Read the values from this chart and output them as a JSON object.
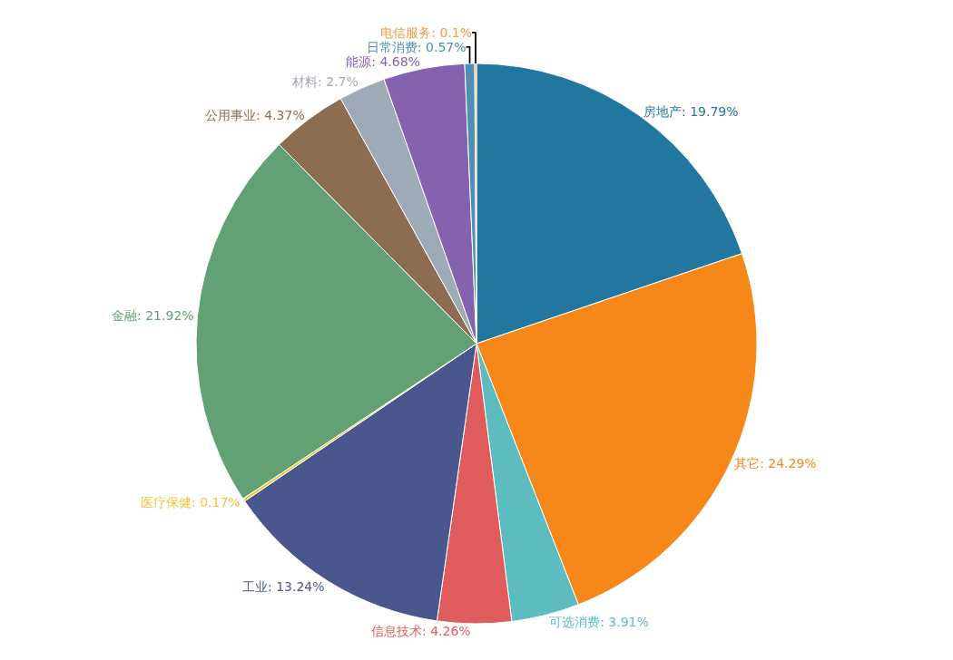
{
  "chart_data": {
    "type": "pie",
    "categories": [
      "房地产",
      "其它",
      "可选消费",
      "信息技术",
      "工业",
      "医疗保健",
      "金融",
      "公用事业",
      "材料",
      "能源",
      "日常消费",
      "电信服务"
    ],
    "values": [
      19.79,
      24.29,
      3.91,
      4.26,
      13.24,
      0.17,
      21.92,
      4.37,
      2.7,
      4.68,
      0.57,
      0.1
    ],
    "value_labels": [
      "19.79%",
      "24.29%",
      "3.91%",
      "4.26%",
      "13.24%",
      "0.17%",
      "21.92%",
      "4.37%",
      "2.7%",
      "4.68%",
      "0.57%",
      "0.1%"
    ],
    "colors": [
      "#2277a0",
      "#f58818",
      "#5cbcbf",
      "#e05b5c",
      "#4a578c",
      "#f2c53a",
      "#62a173",
      "#8c6d51",
      "#9eaab6",
      "#8562ae",
      "#4f8fb3",
      "#f59a45"
    ],
    "legend": false
  }
}
